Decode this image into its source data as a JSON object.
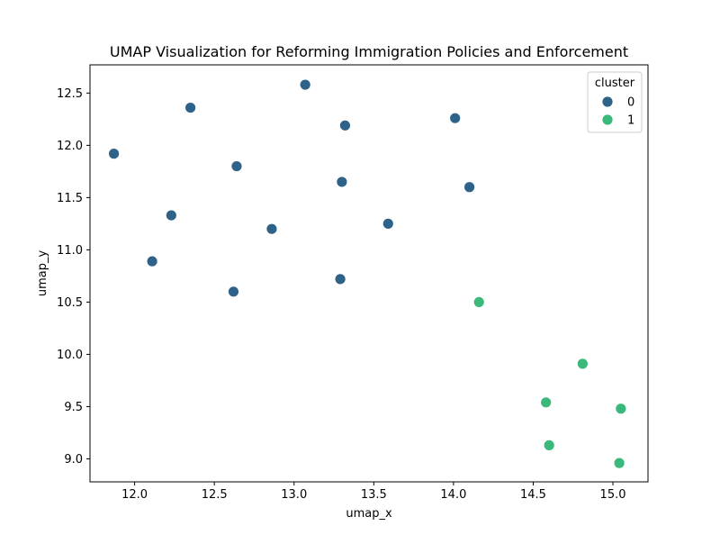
{
  "chart_data": {
    "type": "scatter",
    "title": "UMAP Visualization for Reforming Immigration Policies and Enforcement",
    "xlabel": "umap_x",
    "ylabel": "umap_y",
    "xlim": [
      11.72,
      15.22
    ],
    "ylim": [
      8.78,
      12.77
    ],
    "xticks": [
      12.0,
      12.5,
      13.0,
      13.5,
      14.0,
      14.5,
      15.0
    ],
    "xtick_labels": [
      "12.0",
      "12.5",
      "13.0",
      "13.5",
      "14.0",
      "14.5",
      "15.0"
    ],
    "yticks": [
      9.0,
      9.5,
      10.0,
      10.5,
      11.0,
      11.5,
      12.0,
      12.5
    ],
    "ytick_labels": [
      "9.0",
      "9.5",
      "10.0",
      "10.5",
      "11.0",
      "11.5",
      "12.0",
      "12.5"
    ],
    "grid": false,
    "legend": {
      "title": "cluster",
      "placement": "top-right",
      "entries": [
        {
          "label": "0",
          "color": "#2e6289"
        },
        {
          "label": "1",
          "color": "#3bb97a"
        }
      ]
    },
    "series": [
      {
        "name": "0",
        "color": "#2e6289",
        "points": [
          {
            "x": 11.87,
            "y": 11.92
          },
          {
            "x": 12.11,
            "y": 10.89
          },
          {
            "x": 12.23,
            "y": 11.33
          },
          {
            "x": 12.35,
            "y": 12.36
          },
          {
            "x": 12.62,
            "y": 10.6
          },
          {
            "x": 12.64,
            "y": 11.8
          },
          {
            "x": 12.86,
            "y": 11.2
          },
          {
            "x": 13.07,
            "y": 12.58
          },
          {
            "x": 13.29,
            "y": 10.72
          },
          {
            "x": 13.3,
            "y": 11.65
          },
          {
            "x": 13.32,
            "y": 12.19
          },
          {
            "x": 13.59,
            "y": 11.25
          },
          {
            "x": 14.01,
            "y": 12.26
          },
          {
            "x": 14.1,
            "y": 11.6
          }
        ]
      },
      {
        "name": "1",
        "color": "#3bb97a",
        "points": [
          {
            "x": 14.16,
            "y": 10.5
          },
          {
            "x": 14.58,
            "y": 9.54
          },
          {
            "x": 14.6,
            "y": 9.13
          },
          {
            "x": 14.81,
            "y": 9.91
          },
          {
            "x": 15.04,
            "y": 8.96
          },
          {
            "x": 15.05,
            "y": 9.48
          }
        ]
      }
    ]
  }
}
